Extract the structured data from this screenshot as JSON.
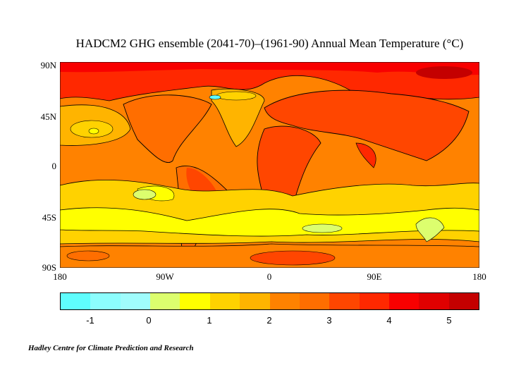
{
  "title": "HADCM2 GHG ensemble (2041-70)–(1961-90) Annual Mean Temperature (°C)",
  "map": {
    "lat_labels": [
      "90N",
      "45N",
      "0",
      "45S",
      "90S"
    ],
    "lon_labels": [
      "180",
      "90W",
      "0",
      "90E",
      "180"
    ]
  },
  "colorbar": {
    "boundaries": [
      -1.5,
      -1,
      -0.5,
      0,
      0.5,
      1,
      1.5,
      2,
      2.5,
      3,
      3.5,
      4,
      4.5,
      5,
      5.5
    ],
    "colors": [
      "#5ffdfd",
      "#8cfdfd",
      "#a0fcfc",
      "#dcfe6e",
      "#ffff00",
      "#ffd200",
      "#ffb400",
      "#ff8200",
      "#ff6e00",
      "#ff4600",
      "#ff2800",
      "#f80000",
      "#e00000",
      "#c40000"
    ],
    "labels": [
      "-1",
      "0",
      "1",
      "2",
      "3",
      "4",
      "5"
    ]
  },
  "credit": "Hadley Centre for Climate Prediction and Research"
}
